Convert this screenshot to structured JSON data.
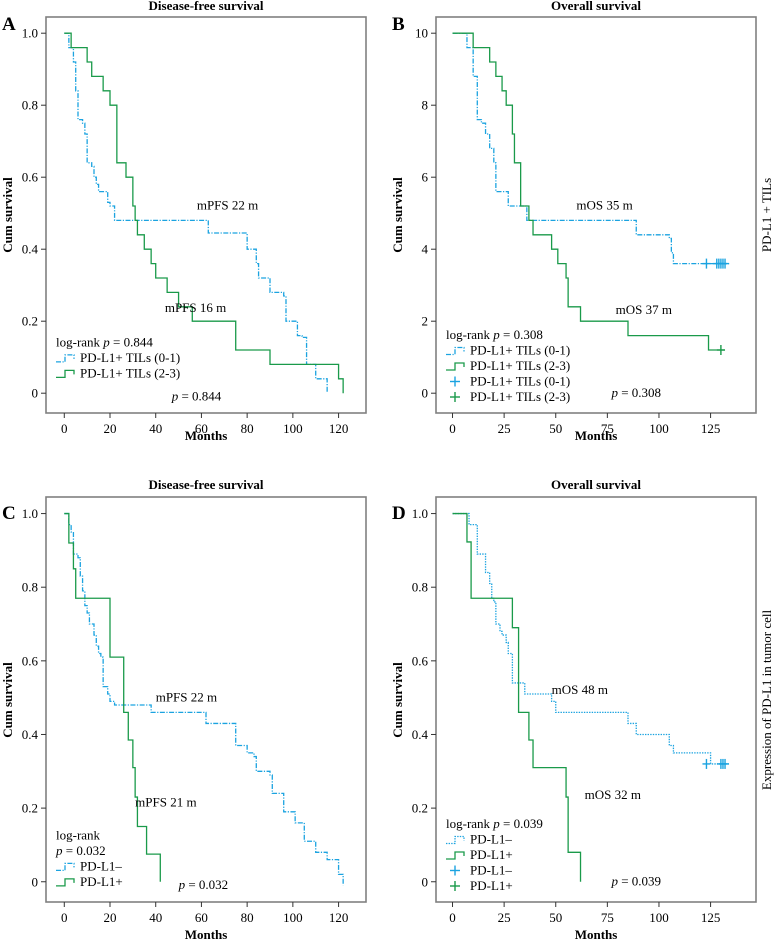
{
  "colors": {
    "group_low": "#1ba3e0",
    "group_high": "#1a9a4a",
    "frame": "#808080",
    "text": "#1a1a1a"
  },
  "side_labels": [
    "PD-L1 + TILs",
    "Expression of PD-L1 in tumor cell"
  ],
  "chart_data": [
    {
      "type": "line",
      "panel": "A",
      "title": "Disease-free survival",
      "xlabel": "Months",
      "ylabel": "Cum survival",
      "xlim": [
        -8,
        132
      ],
      "ylim": [
        -0.055,
        1.045
      ],
      "xticks": [
        0,
        20,
        40,
        60,
        80,
        100,
        120
      ],
      "xtick_labels": [
        "0",
        "20",
        "40",
        "60",
        "80",
        "100",
        "120"
      ],
      "yticks": [
        0,
        0.2,
        0.4,
        0.6,
        0.8,
        1.0
      ],
      "ytick_labels": [
        "0",
        "0.2",
        "0.4",
        "0.6",
        "0.8",
        "1.0"
      ],
      "legend": {
        "placement": "bottom-left",
        "header": "log-rank p = 0.844",
        "entries": [
          {
            "label": "PD-L1+ TILs (0-1)",
            "series": 0,
            "marker": "step"
          },
          {
            "label": "PD-L1+ TILs (2-3)",
            "series": 1,
            "marker": "step"
          }
        ]
      },
      "annotations": [
        {
          "text": "mPFS 22 m",
          "x": 58,
          "y": 0.51
        },
        {
          "text": "mPFS 16 m",
          "x": 44,
          "y": 0.225
        },
        {
          "text": "p = 0.844",
          "x": 47,
          "y": -0.02
        }
      ],
      "series": [
        {
          "name": "PD-L1+ TILs (0-1)",
          "color": "#1ba3e0",
          "dash": "dashdot",
          "steps": [
            [
              0,
              1.0
            ],
            [
              2,
              0.96
            ],
            [
              4,
              0.92
            ],
            [
              5,
              0.84
            ],
            [
              6,
              0.76
            ],
            [
              8,
              0.75
            ],
            [
              9,
              0.72
            ],
            [
              10,
              0.64
            ],
            [
              12,
              0.63
            ],
            [
              13,
              0.6
            ],
            [
              14,
              0.58
            ],
            [
              15,
              0.56
            ],
            [
              19,
              0.53
            ],
            [
              20,
              0.52
            ],
            [
              22,
              0.48
            ],
            [
              63,
              0.445
            ],
            [
              80,
              0.4
            ],
            [
              84,
              0.36
            ],
            [
              85,
              0.32
            ],
            [
              90,
              0.28
            ],
            [
              96,
              0.27
            ],
            [
              97,
              0.2
            ],
            [
              102,
              0.16
            ],
            [
              104,
              0.155
            ],
            [
              106,
              0.08
            ],
            [
              110,
              0.04
            ],
            [
              115,
              0.0
            ]
          ],
          "censored": []
        },
        {
          "name": "PD-L1+ TILs (2-3)",
          "color": "#1a9a4a",
          "dash": "solid",
          "steps": [
            [
              0,
              1.0
            ],
            [
              3,
              0.96
            ],
            [
              10,
              0.92
            ],
            [
              12,
              0.88
            ],
            [
              17,
              0.84
            ],
            [
              20,
              0.8
            ],
            [
              23,
              0.64
            ],
            [
              27,
              0.6
            ],
            [
              30,
              0.52
            ],
            [
              31,
              0.48
            ],
            [
              32,
              0.44
            ],
            [
              35,
              0.4
            ],
            [
              38,
              0.36
            ],
            [
              40,
              0.32
            ],
            [
              45,
              0.28
            ],
            [
              50,
              0.24
            ],
            [
              56,
              0.2
            ],
            [
              75,
              0.12
            ],
            [
              90,
              0.08
            ],
            [
              120,
              0.04
            ],
            [
              122,
              0.0
            ]
          ],
          "censored": []
        }
      ]
    },
    {
      "type": "line",
      "panel": "B",
      "title": "Overall survival",
      "xlabel": "Months",
      "ylabel": "Cum survival",
      "xlim": [
        -8,
        147
      ],
      "ylim": [
        -0.55,
        10.45
      ],
      "xticks": [
        0,
        25,
        50,
        75,
        100,
        125
      ],
      "xtick_labels": [
        "0",
        "25",
        "50",
        "75",
        "100",
        "125"
      ],
      "yticks": [
        0,
        2,
        4,
        6,
        8,
        10
      ],
      "ytick_labels": [
        "0",
        "2",
        "4",
        "6",
        "8",
        "10"
      ],
      "legend": {
        "placement": "bottom-left",
        "header": "log-rank p = 0.308",
        "entries": [
          {
            "label": "PD-L1+ TILs (0-1)",
            "series": 0,
            "marker": "step"
          },
          {
            "label": "PD-L1+ TILs (2-3)",
            "series": 1,
            "marker": "step"
          },
          {
            "label": "PD-L1+ TILs (0-1)",
            "series": 0,
            "marker": "plus"
          },
          {
            "label": "PD-L1+ TILs (2-3)",
            "series": 1,
            "marker": "plus"
          }
        ]
      },
      "annotations": [
        {
          "text": "mOS 35 m",
          "x": 60,
          "y": 5.1
        },
        {
          "text": "mOS 37 m",
          "x": 79,
          "y": 2.2
        },
        {
          "text": "p = 0.308",
          "x": 77,
          "y": -0.1
        }
      ],
      "series": [
        {
          "name": "PD-L1+ TILs (0-1)",
          "color": "#1ba3e0",
          "dash": "dashdot",
          "steps": [
            [
              0,
              10.0
            ],
            [
              7,
              9.6
            ],
            [
              10,
              8.8
            ],
            [
              12,
              7.6
            ],
            [
              14,
              7.5
            ],
            [
              16,
              7.2
            ],
            [
              18,
              6.8
            ],
            [
              20,
              6.4
            ],
            [
              21,
              5.6
            ],
            [
              27,
              5.2
            ],
            [
              36,
              4.8
            ],
            [
              89,
              4.4
            ],
            [
              105,
              4.3
            ],
            [
              106,
              3.9
            ],
            [
              107,
              3.6
            ]
          ],
          "end": 134,
          "censored": [
            123,
            128,
            129,
            130,
            131,
            132
          ]
        },
        {
          "name": "PD-L1+ TILs (2-3)",
          "color": "#1a9a4a",
          "dash": "solid",
          "steps": [
            [
              0,
              10.0
            ],
            [
              10,
              9.6
            ],
            [
              18,
              9.2
            ],
            [
              21,
              8.8
            ],
            [
              24,
              8.4
            ],
            [
              26,
              8.0
            ],
            [
              29,
              7.2
            ],
            [
              30,
              6.4
            ],
            [
              33,
              5.2
            ],
            [
              37,
              4.8
            ],
            [
              39,
              4.4
            ],
            [
              48,
              4.0
            ],
            [
              51,
              3.6
            ],
            [
              55,
              3.2
            ],
            [
              56,
              2.4
            ],
            [
              62,
              2.0
            ],
            [
              85,
              1.6
            ],
            [
              124,
              1.2
            ]
          ],
          "end": 132,
          "censored": [
            130
          ]
        }
      ]
    },
    {
      "type": "line",
      "panel": "C",
      "title": "Disease-free survival",
      "xlabel": "Months",
      "ylabel": "Cum survival",
      "xlim": [
        -8,
        132
      ],
      "ylim": [
        -0.055,
        1.045
      ],
      "xticks": [
        0,
        20,
        40,
        60,
        80,
        100,
        120
      ],
      "xtick_labels": [
        "0",
        "20",
        "40",
        "60",
        "80",
        "100",
        "120"
      ],
      "yticks": [
        0,
        0.2,
        0.4,
        0.6,
        0.8,
        1.0
      ],
      "ytick_labels": [
        "0",
        "0.2",
        "0.4",
        "0.6",
        "0.8",
        "1.0"
      ],
      "legend": {
        "placement": "bottom-left",
        "header": "log-rank",
        "header2": "p = 0.032",
        "entries": [
          {
            "label": "PD-L1–",
            "series": 0,
            "marker": "step"
          },
          {
            "label": "PD-L1+",
            "series": 1,
            "marker": "step"
          }
        ]
      },
      "annotations": [
        {
          "text": "mPFS 22 m",
          "x": 40,
          "y": 0.49
        },
        {
          "text": "mPFS 21 m",
          "x": 31,
          "y": 0.205
        },
        {
          "text": "p = 0.032",
          "x": 50,
          "y": -0.02
        }
      ],
      "series": [
        {
          "name": "PD-L1–",
          "color": "#1ba3e0",
          "dash": "dashdot",
          "steps": [
            [
              0,
              1.0
            ],
            [
              2,
              0.97
            ],
            [
              3,
              0.95
            ],
            [
              4,
              0.89
            ],
            [
              6,
              0.88
            ],
            [
              7,
              0.83
            ],
            [
              8,
              0.79
            ],
            [
              9,
              0.75
            ],
            [
              10,
              0.73
            ],
            [
              11,
              0.7
            ],
            [
              13,
              0.67
            ],
            [
              14,
              0.64
            ],
            [
              15,
              0.62
            ],
            [
              16,
              0.61
            ],
            [
              17,
              0.53
            ],
            [
              19,
              0.51
            ],
            [
              20,
              0.49
            ],
            [
              22,
              0.48
            ],
            [
              38,
              0.46
            ],
            [
              62,
              0.43
            ],
            [
              75,
              0.37
            ],
            [
              80,
              0.35
            ],
            [
              83,
              0.34
            ],
            [
              84,
              0.3
            ],
            [
              90,
              0.29
            ],
            [
              91,
              0.24
            ],
            [
              96,
              0.19
            ],
            [
              101,
              0.16
            ],
            [
              105,
              0.11
            ],
            [
              110,
              0.08
            ],
            [
              115,
              0.06
            ],
            [
              120,
              0.02
            ],
            [
              122,
              -0.01
            ]
          ],
          "censored": []
        },
        {
          "name": "PD-L1+",
          "color": "#1a9a4a",
          "dash": "solid",
          "steps": [
            [
              0,
              1.0
            ],
            [
              2,
              0.92
            ],
            [
              4,
              0.85
            ],
            [
              5,
              0.77
            ],
            [
              20,
              0.61
            ],
            [
              26,
              0.46
            ],
            [
              28,
              0.385
            ],
            [
              30,
              0.31
            ],
            [
              31,
              0.23
            ],
            [
              32,
              0.15
            ],
            [
              36,
              0.075
            ],
            [
              42,
              0.0
            ]
          ],
          "censored": []
        }
      ]
    },
    {
      "type": "line",
      "panel": "D",
      "title": "Overall survival",
      "xlabel": "Months",
      "ylabel": "Cum survival",
      "xlim": [
        -8,
        147
      ],
      "ylim": [
        -0.055,
        1.045
      ],
      "xticks": [
        0,
        25,
        50,
        75,
        100,
        125
      ],
      "xtick_labels": [
        "0",
        "25",
        "50",
        "75",
        "100",
        "125"
      ],
      "yticks": [
        0,
        0.2,
        0.4,
        0.6,
        0.8,
        1.0
      ],
      "ytick_labels": [
        "0",
        "0.2",
        "0.4",
        "0.6",
        "0.8",
        "1.0"
      ],
      "legend": {
        "placement": "bottom-left",
        "header": "log-rank p = 0.039",
        "entries": [
          {
            "label": "PD-L1–",
            "series": 0,
            "marker": "step"
          },
          {
            "label": "PD-L1+",
            "series": 1,
            "marker": "step"
          },
          {
            "label": "PD-L1–",
            "series": 0,
            "marker": "plus"
          },
          {
            "label": "PD-L1+",
            "series": 1,
            "marker": "plus"
          }
        ]
      },
      "annotations": [
        {
          "text": "mOS 48 m",
          "x": 48,
          "y": 0.51
        },
        {
          "text": "mOS 32 m",
          "x": 64,
          "y": 0.225
        },
        {
          "text": "p = 0.039",
          "x": 77,
          "y": -0.01
        }
      ],
      "series": [
        {
          "name": "PD-L1–",
          "color": "#1ba3e0",
          "dash": "dotted",
          "steps": [
            [
              0,
              1.0
            ],
            [
              8,
              0.97
            ],
            [
              12,
              0.89
            ],
            [
              16,
              0.84
            ],
            [
              18,
              0.81
            ],
            [
              19,
              0.77
            ],
            [
              20,
              0.76
            ],
            [
              21,
              0.7
            ],
            [
              23,
              0.68
            ],
            [
              24,
              0.67
            ],
            [
              26,
              0.65
            ],
            [
              27,
              0.62
            ],
            [
              29,
              0.54
            ],
            [
              35,
              0.51
            ],
            [
              48,
              0.49
            ],
            [
              50,
              0.46
            ],
            [
              85,
              0.43
            ],
            [
              89,
              0.4
            ],
            [
              105,
              0.37
            ],
            [
              107,
              0.35
            ],
            [
              125,
              0.32
            ]
          ],
          "end": 134,
          "censored": [
            123,
            130,
            131,
            132
          ]
        },
        {
          "name": "PD-L1+",
          "color": "#1a9a4a",
          "dash": "solid",
          "steps": [
            [
              0,
              1.0
            ],
            [
              7,
              0.923
            ],
            [
              9,
              0.77
            ],
            [
              29,
              0.69
            ],
            [
              32,
              0.46
            ],
            [
              37,
              0.385
            ],
            [
              39,
              0.31
            ],
            [
              55,
              0.23
            ],
            [
              56,
              0.08
            ],
            [
              62,
              0.0
            ]
          ],
          "censored": []
        }
      ]
    }
  ]
}
